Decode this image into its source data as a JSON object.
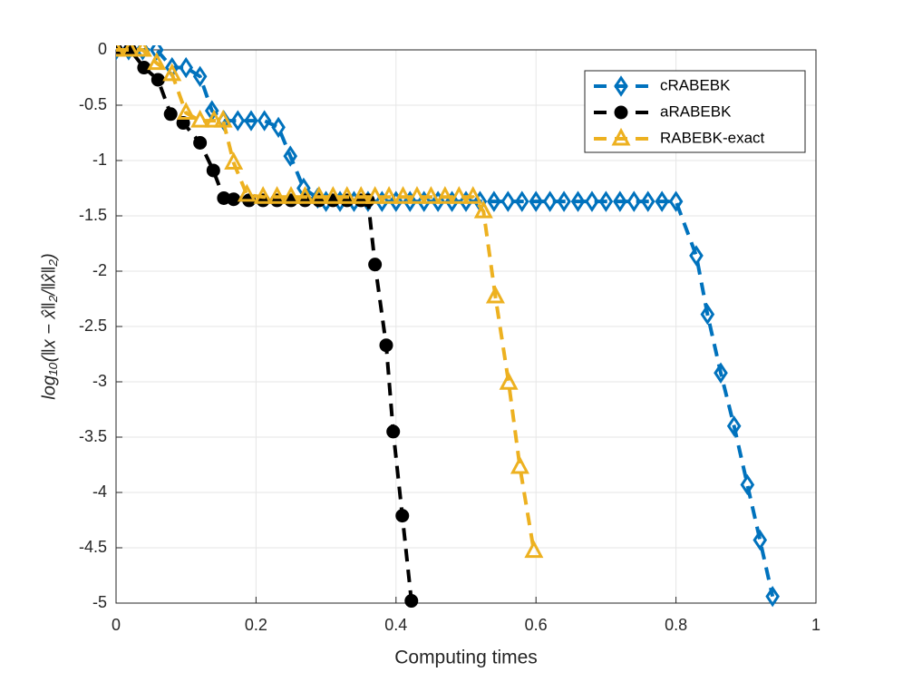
{
  "chart_data": {
    "type": "line",
    "xlabel": "Computing times",
    "ylabel": "log₁₀(‖x − x̂‖₂/‖x̂‖₂)",
    "xlim": [
      0,
      1
    ],
    "xticks": [
      0,
      0.2,
      0.4,
      0.6,
      0.8,
      1
    ],
    "ylim": [
      -5,
      0
    ],
    "yticks": [
      0,
      -0.5,
      -1,
      -1.5,
      -2,
      -2.5,
      -3,
      -3.5,
      -4,
      -4.5,
      -5
    ],
    "grid": true,
    "legend": "upper right",
    "series": [
      {
        "name": "cRABEBK",
        "color": "#0072BD",
        "marker": "diamond",
        "x": [
          0,
          0.018,
          0.038,
          0.058,
          0.08,
          0.1,
          0.12,
          0.137,
          0.154,
          0.174,
          0.193,
          0.212,
          0.232,
          0.249,
          0.268,
          0.288,
          0.3,
          0.32,
          0.34,
          0.36,
          0.38,
          0.4,
          0.42,
          0.44,
          0.46,
          0.48,
          0.5,
          0.52,
          0.54,
          0.56,
          0.58,
          0.6,
          0.62,
          0.64,
          0.66,
          0.68,
          0.7,
          0.72,
          0.74,
          0.76,
          0.78,
          0.8,
          0.829,
          0.845,
          0.864,
          0.883,
          0.902,
          0.92,
          0.938
        ],
        "values": [
          0,
          0,
          0,
          0,
          -0.16,
          -0.16,
          -0.24,
          -0.55,
          -0.64,
          -0.64,
          -0.64,
          -0.64,
          -0.7,
          -0.96,
          -1.25,
          -1.34,
          -1.37,
          -1.37,
          -1.37,
          -1.37,
          -1.37,
          -1.37,
          -1.37,
          -1.37,
          -1.37,
          -1.37,
          -1.37,
          -1.37,
          -1.37,
          -1.37,
          -1.37,
          -1.37,
          -1.37,
          -1.37,
          -1.37,
          -1.37,
          -1.37,
          -1.37,
          -1.37,
          -1.37,
          -1.37,
          -1.37,
          -1.86,
          -2.39,
          -2.92,
          -3.4,
          -3.93,
          -4.43,
          -4.94
        ]
      },
      {
        "name": "aRABEBK",
        "color": "#000000",
        "marker": "circle",
        "x": [
          0,
          0.02,
          0.04,
          0.06,
          0.078,
          0.096,
          0.12,
          0.139,
          0.154,
          0.168,
          0.19,
          0.21,
          0.23,
          0.25,
          0.27,
          0.29,
          0.31,
          0.33,
          0.35,
          0.36,
          0.37,
          0.386,
          0.396,
          0.409,
          0.422
        ],
        "values": [
          0,
          0,
          -0.16,
          -0.27,
          -0.58,
          -0.66,
          -0.84,
          -1.09,
          -1.34,
          -1.35,
          -1.36,
          -1.36,
          -1.36,
          -1.36,
          -1.36,
          -1.36,
          -1.36,
          -1.36,
          -1.36,
          -1.36,
          -1.94,
          -2.67,
          -3.45,
          -4.21,
          -4.98
        ]
      },
      {
        "name": "RABEBK-exact",
        "color": "#EDB120",
        "marker": "triangle",
        "x": [
          0,
          0.02,
          0.038,
          0.058,
          0.08,
          0.1,
          0.12,
          0.14,
          0.153,
          0.168,
          0.187,
          0.21,
          0.23,
          0.25,
          0.27,
          0.29,
          0.31,
          0.33,
          0.35,
          0.37,
          0.39,
          0.41,
          0.43,
          0.45,
          0.47,
          0.49,
          0.51,
          0.525,
          0.542,
          0.561,
          0.577,
          0.597
        ],
        "values": [
          0,
          0,
          0,
          -0.12,
          -0.22,
          -0.57,
          -0.64,
          -0.64,
          -0.64,
          -1.02,
          -1.31,
          -1.33,
          -1.33,
          -1.33,
          -1.33,
          -1.33,
          -1.33,
          -1.33,
          -1.33,
          -1.33,
          -1.33,
          -1.33,
          -1.33,
          -1.33,
          -1.33,
          -1.33,
          -1.33,
          -1.46,
          -2.23,
          -3.01,
          -3.77,
          -4.53
        ]
      }
    ]
  }
}
